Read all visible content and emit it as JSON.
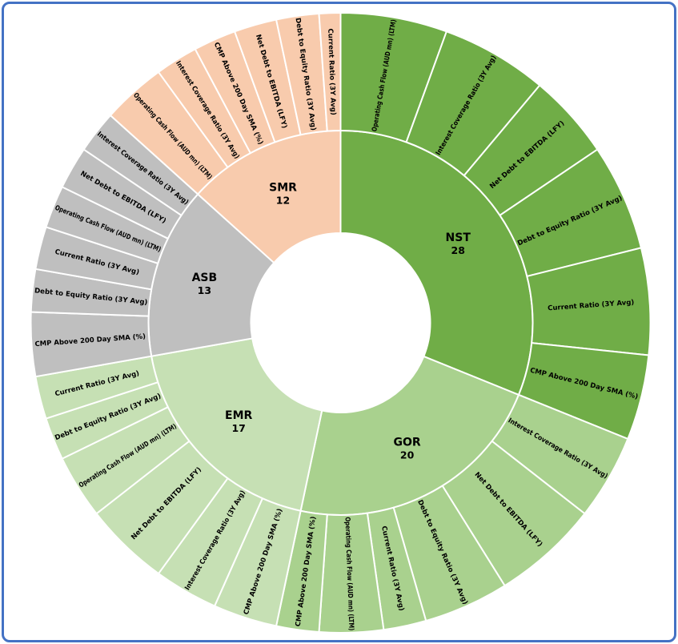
{
  "frame": {
    "background": "#FFFFFF",
    "border_color": "#4472C4"
  },
  "chart_data": {
    "type": "sunburst",
    "title": "",
    "rings": [
      "company",
      "metric"
    ],
    "start_angle_deg": 0,
    "total_units": 90,
    "legend": "none",
    "companies": [
      {
        "ticker": "NST",
        "total": 28,
        "color": "#70AD47",
        "segments": [
          {
            "label": "Operating Cash Flow (AUD mn) (LTM)",
            "value": 5
          },
          {
            "label": "Interest Coverage Ratio (3Y Avg)",
            "value": 5
          },
          {
            "label": "Net Debt to EBITDA (LFY)",
            "value": 4
          },
          {
            "label": "Debt to Equity Ratio (3Y Avg)",
            "value": 5
          },
          {
            "label": "Current Ratio (3Y Avg)",
            "value": 5
          },
          {
            "label": "CMP Above 200 Day SMA (%)",
            "value": 4
          }
        ]
      },
      {
        "ticker": "GOR",
        "total": 20,
        "color": "#A9D18E",
        "segments": [
          {
            "label": "Interest Coverage Ratio (3Y Avg)",
            "value": 4
          },
          {
            "label": "Net Debt to EBITDA (LFY)",
            "value": 5
          },
          {
            "label": "Debt to Equity Ratio (3Y Avg)",
            "value": 4
          },
          {
            "label": "Current Ratio (3Y Avg)",
            "value": 2
          },
          {
            "label": "Operating Cash Flow (AUD mn) (LTM)",
            "value": 3
          },
          {
            "label": "CMP Above 200 Day SMA (%)",
            "value": 2
          }
        ]
      },
      {
        "ticker": "EMR",
        "total": 17,
        "color": "#C6E0B4",
        "segments": [
          {
            "label": "CMP Above 200 Day SMA (%)",
            "value": 3
          },
          {
            "label": "Interest Coverage Ratio (3Y Avg)",
            "value": 3
          },
          {
            "label": "Net Debt to EBITDA (LFY)",
            "value": 4
          },
          {
            "label": "Operating Cash Flow (AUD mn) (LTM)",
            "value": 3
          },
          {
            "label": "Debt to Equity Ratio (3Y Avg)",
            "value": 2
          },
          {
            "label": "Current Ratio (3Y Avg)",
            "value": 2
          }
        ]
      },
      {
        "ticker": "ASB",
        "total": 13,
        "color": "#BFBFBF",
        "segments": [
          {
            "label": "CMP Above 200 Day SMA (%)",
            "value": 3
          },
          {
            "label": "Debt to Equity Ratio (3Y Avg)",
            "value": 2
          },
          {
            "label": "Current Ratio (3Y Avg)",
            "value": 2
          },
          {
            "label": "Operating Cash Flow (AUD mn) (LTM)",
            "value": 2
          },
          {
            "label": "Net Debt to EBITDA (LFY)",
            "value": 2
          },
          {
            "label": "Interest Coverage Ratio (3Y Avg)",
            "value": 2
          }
        ]
      },
      {
        "ticker": "SMR",
        "total": 12,
        "color": "#F8CBAD",
        "segments": [
          {
            "label": "Operating Cash Flow (AUD mn) (LTM)",
            "value": 3
          },
          {
            "label": "Interest Coverage Ratio (3Y Avg)",
            "value": 2
          },
          {
            "label": "CMP Above 200 Day SMA (%)",
            "value": 2
          },
          {
            "label": "Net Debt to EBITDA (LFY)",
            "value": 2
          },
          {
            "label": "Debt to Equity Ratio (3Y Avg)",
            "value": 2
          },
          {
            "label": "Current Ratio (3Y Avg)",
            "value": 1
          }
        ]
      }
    ]
  }
}
